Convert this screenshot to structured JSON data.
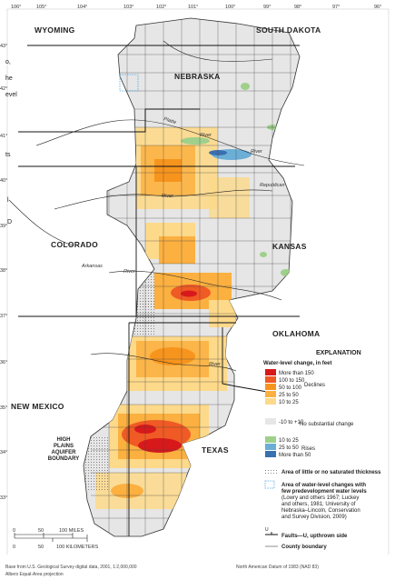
{
  "lon_labels": [
    "106°",
    "105°",
    "104°",
    "103°",
    "102°",
    "101°",
    "100°",
    "99°",
    "98°",
    "97°",
    "96°"
  ],
  "lat_labels": [
    "43°",
    "42°",
    "41°",
    "40°",
    "39°",
    "38°",
    "37°",
    "36°",
    "35°",
    "34°",
    "33°"
  ],
  "states": {
    "wyoming": "WYOMING",
    "south_dakota": "SOUTH DAKOTA",
    "nebraska": "NEBRASKA",
    "colorado": "COLORADO",
    "kansas": "KANSAS",
    "oklahoma": "OKLAHOMA",
    "new_mexico": "NEW MEXICO",
    "texas": "TEXAS"
  },
  "rivers": {
    "platte": "Platte",
    "river1": "River",
    "river2": "River",
    "republican": "Republican",
    "arkansas": "Arkansas",
    "river3": "River",
    "river4": "River",
    "river5": "River"
  },
  "aquifer_label": [
    "HIGH",
    "PLAINS",
    "AQUIFER",
    "BOUNDARY"
  ],
  "legend": {
    "title": "EXPLANATION",
    "subtitle": "Water-level change, in feet",
    "items": [
      {
        "label": "More than 150",
        "color": "#d7191c"
      },
      {
        "label": "100 to 150",
        "color": "#f05a24"
      },
      {
        "label": "50 to 100",
        "color": "#f7941d"
      },
      {
        "label": "25 to 50",
        "color": "#fbb040"
      },
      {
        "label": "10 to 25",
        "color": "#fdd98a"
      },
      {
        "label": "-10 to +10",
        "color": "#e6e6e6"
      },
      {
        "label": "10 to 25",
        "color": "#9fd08b"
      },
      {
        "label": "25 to 50",
        "color": "#6baed6"
      },
      {
        "label": "More than 50",
        "color": "#3a6fb0"
      }
    ],
    "declines": "Declines",
    "no_change": "No substantial change",
    "rises": "Rises",
    "thin": "Area of little or no saturated thickness",
    "few_data": [
      "Area of water-level changes with",
      "few predevelopment water levels",
      "(Lowry and others 1967; Luckey",
      "and others, 1981; University of",
      "Nebraska–Lincoln, Conservation",
      "and Survey Division, 2009)"
    ],
    "faults": "Faults—U, upthrown side",
    "fault_u": "U",
    "county": "County boundary"
  },
  "scale": {
    "zero": "0",
    "miles_mid": "50",
    "miles_end": "100 MILES",
    "km_mid": "50",
    "km_end": "100 KILOMETERS"
  },
  "footer": {
    "left1": "Base from U.S. Geological Survey digital data, 2001, 1:2,000,000",
    "left2": "Albers Equal-Area projection",
    "right": "North American Datum of 1983 (NAD 83)"
  },
  "clipped_text": [
    "o,",
    "he",
    "evel",
    "ts",
    "l",
    "D"
  ]
}
